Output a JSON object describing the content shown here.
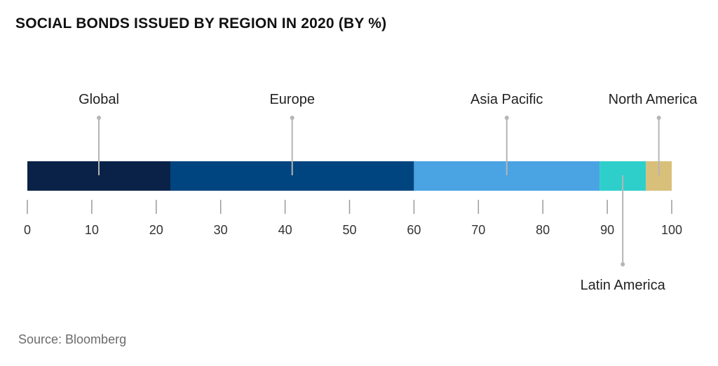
{
  "title": "SOCIAL BONDS ISSUED BY REGION IN 2020 (BY %)",
  "source": "Source: Bloomberg",
  "chart_data": {
    "type": "bar",
    "orientation": "horizontal-stacked",
    "title": "SOCIAL BONDS ISSUED BY REGION IN 2020 (BY %)",
    "xlim": [
      0,
      100
    ],
    "ticks": [
      0,
      10,
      20,
      30,
      40,
      50,
      60,
      70,
      80,
      90,
      100
    ],
    "series": [
      {
        "name": "Global",
        "value": 22.2,
        "color": "#0a2247",
        "label_side": "top"
      },
      {
        "name": "Europe",
        "value": 37.8,
        "color": "#00457f",
        "label_side": "top"
      },
      {
        "name": "Asia Pacific",
        "value": 28.8,
        "color": "#4aa3e3",
        "label_side": "top"
      },
      {
        "name": "Latin America",
        "value": 7.2,
        "color": "#2ecfcb",
        "label_side": "bottom"
      },
      {
        "name": "North America",
        "value": 4.0,
        "color": "#d8c07a",
        "label_side": "top"
      }
    ]
  }
}
